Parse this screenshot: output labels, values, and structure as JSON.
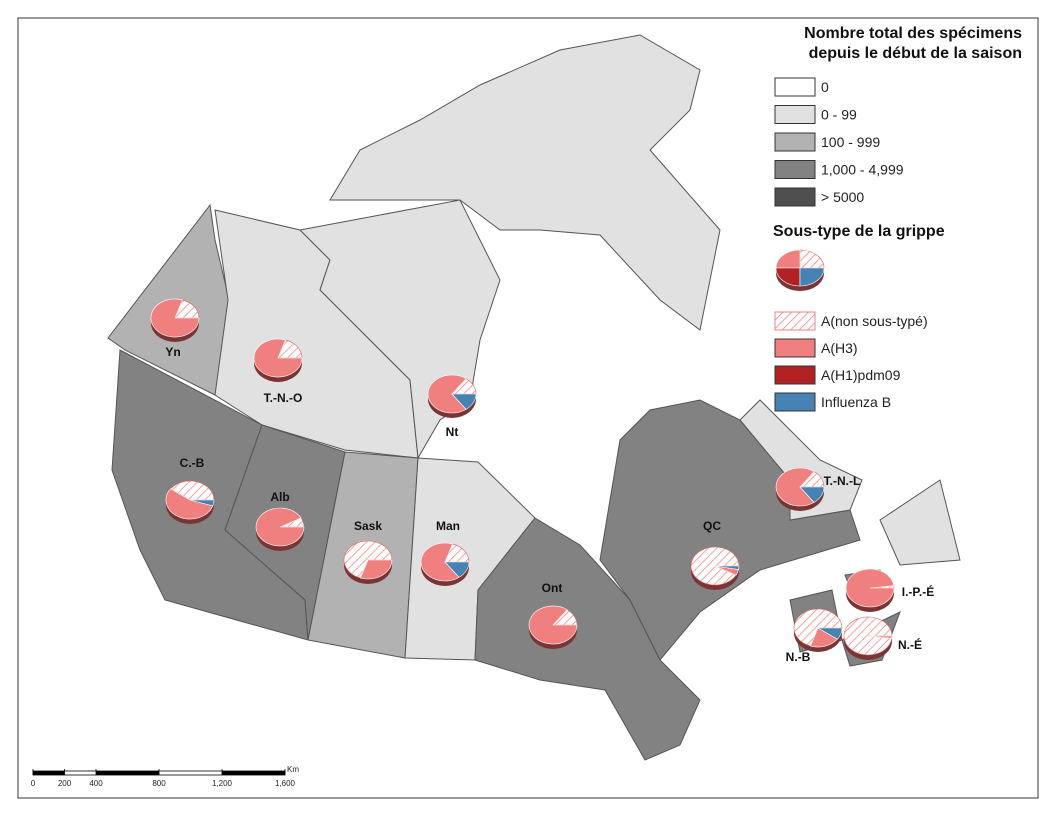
{
  "count_legend": {
    "title_lines": [
      "Nombre total des spécimens",
      "depuis le début de la saison"
    ],
    "items": [
      {
        "label": "0",
        "color": "#ffffff"
      },
      {
        "label": "0 - 99",
        "color": "#e1e1e1"
      },
      {
        "label": "100 - 999",
        "color": "#b2b2b2"
      },
      {
        "label": "1,000 - 4,999",
        "color": "#828282"
      },
      {
        "label": "> 5000",
        "color": "#4e4e4e"
      }
    ]
  },
  "subtype_legend": {
    "title": "Sous-type de la grippe",
    "items": [
      {
        "label": "A(non sous-typé)",
        "color": "#f08080",
        "hatched": true
      },
      {
        "label": "A(H3)",
        "color": "#f08080",
        "hatched": false
      },
      {
        "label": "A(H1)pdm09",
        "color": "#b22222",
        "hatched": false
      },
      {
        "label": "Influenza B",
        "color": "#4682b4",
        "hatched": false
      }
    ]
  },
  "provinces": [
    {
      "label": "Yn",
      "level": 2,
      "shares": [
        20,
        80,
        0,
        0
      ]
    },
    {
      "label": "T.-N.-O",
      "level": 1,
      "shares": [
        20,
        80,
        0,
        0
      ]
    },
    {
      "label": "Nt",
      "level": 1,
      "shares": [
        15,
        70,
        0,
        15
      ]
    },
    {
      "label": "C.-B",
      "level": 3,
      "shares": [
        40,
        55,
        0,
        5
      ]
    },
    {
      "label": "Alb",
      "level": 3,
      "shares": [
        8,
        92,
        0,
        0
      ]
    },
    {
      "label": "Sask",
      "level": 2,
      "shares": [
        70,
        30,
        0,
        0
      ]
    },
    {
      "label": "Man",
      "level": 1,
      "shares": [
        20,
        65,
        0,
        15
      ]
    },
    {
      "label": "Ont",
      "level": 3,
      "shares": [
        15,
        85,
        0,
        0
      ]
    },
    {
      "label": "QC",
      "level": 3,
      "shares": [
        92,
        5,
        0,
        3
      ]
    },
    {
      "label": "T.-N.-L",
      "level": 1,
      "shares": [
        15,
        70,
        0,
        15
      ]
    },
    {
      "label": "I.-P.-É",
      "level": 3,
      "shares": [
        2,
        98,
        0,
        0
      ]
    },
    {
      "label": "N.-B",
      "level": 3,
      "shares": [
        70,
        20,
        0,
        10
      ]
    },
    {
      "label": "N.-É",
      "level": 3,
      "shares": [
        98,
        2,
        0,
        0
      ]
    }
  ],
  "scale": {
    "unit": "Km",
    "ticks": [
      0,
      200,
      400,
      800,
      {
        "value": 1200,
        "label": "1,200"
      },
      {
        "value": 1600,
        "label": "1,600"
      }
    ]
  }
}
